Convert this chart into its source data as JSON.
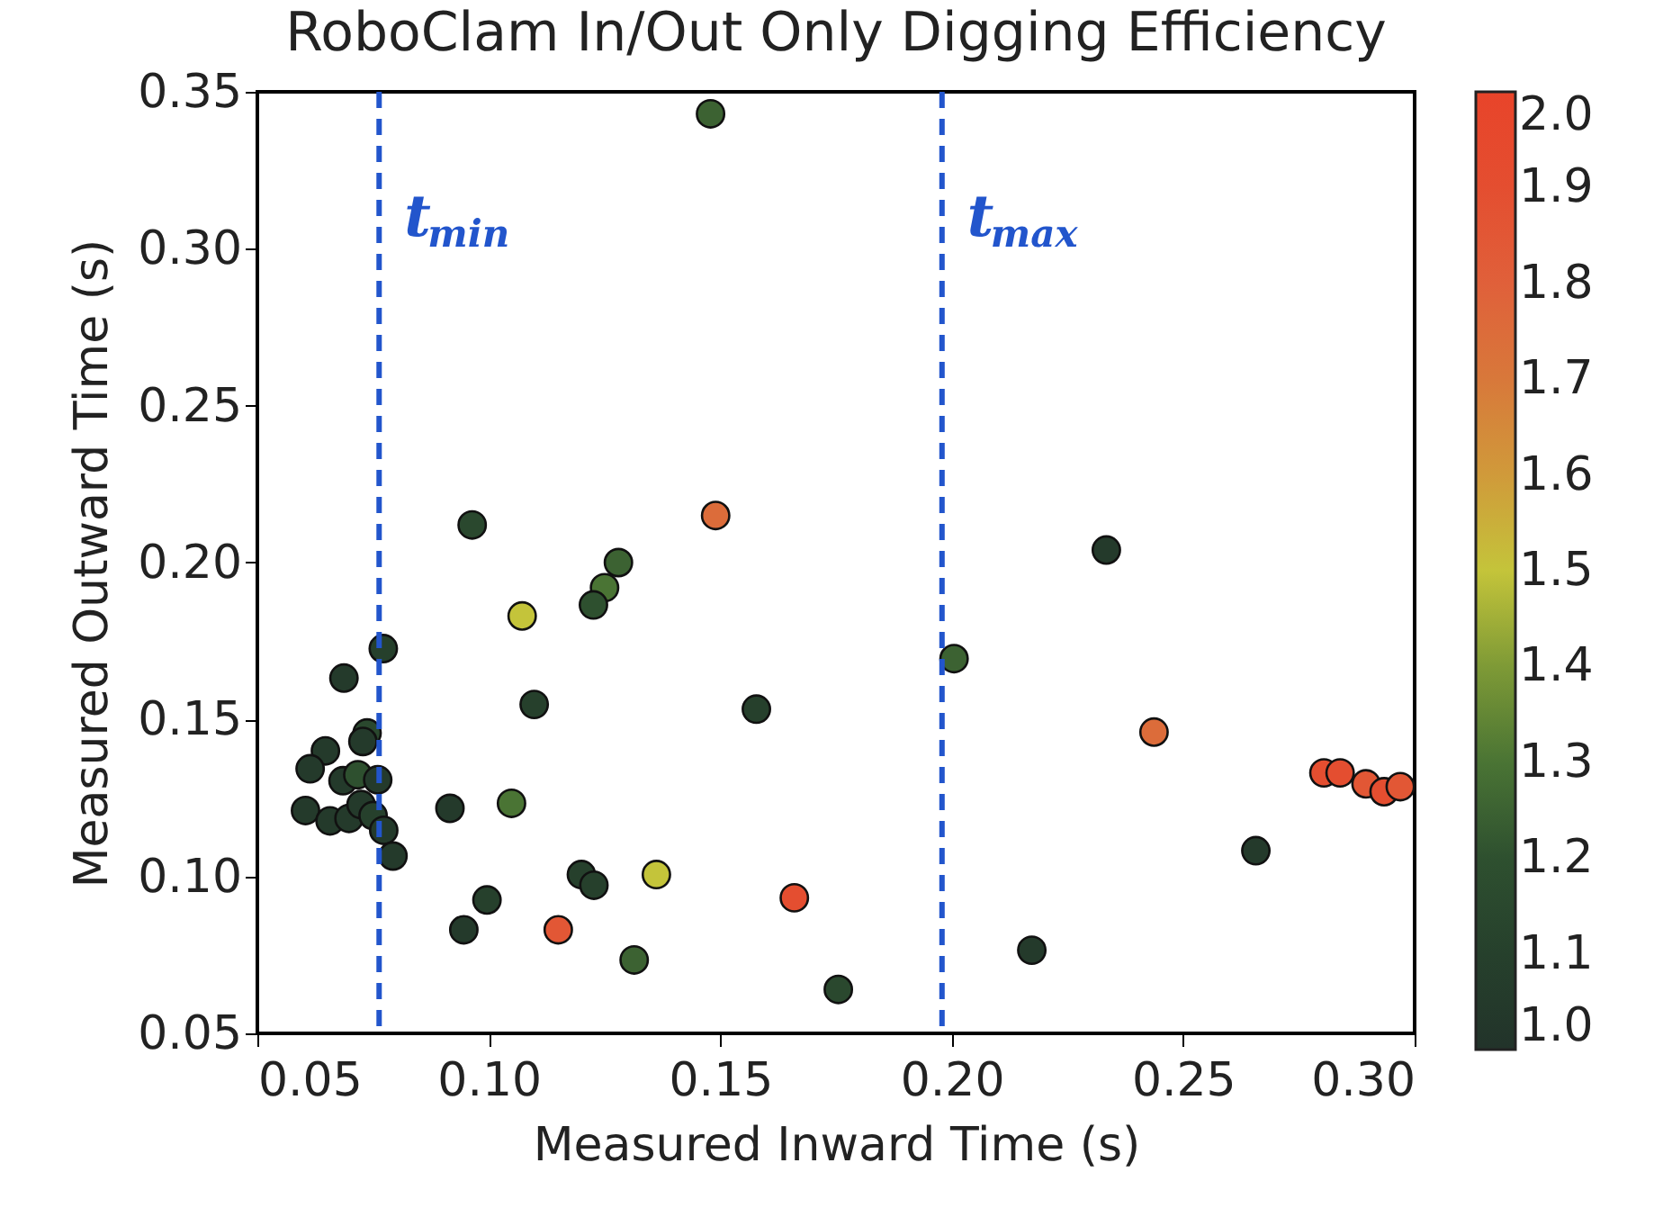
{
  "chart_data": {
    "type": "scatter",
    "title": "RoboClam In/Out Only Digging Efficiency",
    "xlabel": "Measured Inward Time (s)",
    "ylabel": "Measured Outward Time (s)",
    "x": [
      0.1479,
      0.0964,
      0.149,
      0.128,
      0.125,
      0.1226,
      0.1072,
      0.0772,
      0.0687,
      0.1098,
      0.1578,
      0.0737,
      0.0728,
      0.0647,
      0.0614,
      0.0685,
      0.0717,
      0.076,
      0.0604,
      0.0657,
      0.0698,
      0.0724,
      0.075,
      0.0773,
      0.0793,
      0.0916,
      0.1049,
      0.12,
      0.1227,
      0.1362,
      0.0996,
      0.0946,
      0.115,
      0.1314,
      0.166,
      0.1755,
      0.2334,
      0.2005,
      0.2437,
      0.2804,
      0.2839,
      0.2895,
      0.2934,
      0.2969,
      0.2657,
      0.2173
    ],
    "values": [
      0.343,
      0.212,
      0.215,
      0.2,
      0.192,
      0.1865,
      0.183,
      0.1726,
      0.1632,
      0.1548,
      0.1533,
      0.1457,
      0.143,
      0.14,
      0.1343,
      0.1305,
      0.1324,
      0.1308,
      0.121,
      0.1177,
      0.1185,
      0.1229,
      0.1194,
      0.1147,
      0.1065,
      0.1217,
      0.1233,
      0.1006,
      0.0972,
      0.1006,
      0.0925,
      0.083,
      0.083,
      0.0734,
      0.0932,
      0.064,
      0.204,
      0.1694,
      0.146,
      0.133,
      0.133,
      0.1295,
      0.127,
      0.1286,
      0.1082,
      0.0765
    ],
    "cvalues": [
      1.25,
      1.15,
      1.75,
      1.25,
      1.3,
      1.2,
      1.5,
      1.1,
      1.05,
      1.1,
      1.1,
      1.15,
      1.05,
      1.05,
      1.05,
      1.05,
      1.2,
      1.05,
      1.05,
      1.05,
      1.05,
      1.05,
      1.1,
      1.05,
      1.05,
      1.05,
      1.3,
      1.1,
      1.1,
      1.5,
      1.1,
      1.05,
      1.85,
      1.25,
      1.9,
      1.15,
      1.05,
      1.25,
      1.75,
      1.9,
      1.9,
      1.85,
      1.9,
      1.85,
      1.05,
      1.05
    ],
    "xlim": [
      0.05,
      0.3
    ],
    "xticks": [
      0.05,
      {
        "value": 0.1,
        "label": "0.10"
      },
      0.15,
      {
        "value": 0.2,
        "label": "0.20"
      },
      0.25,
      {
        "value": 0.3,
        "label": "0.30"
      }
    ],
    "ylim": [
      0.05,
      0.35
    ],
    "yticks": [
      0.05,
      {
        "value": 0.1,
        "label": "0.10"
      },
      0.15,
      {
        "value": 0.2,
        "label": "0.20"
      },
      0.25,
      {
        "value": 0.3,
        "label": "0.30"
      },
      0.35
    ],
    "clim": [
      1.0,
      2.0
    ],
    "cticks": [
      {
        "value": 1,
        "label": "1.0"
      },
      1.1,
      1.2,
      1.3,
      1.4,
      1.5,
      1.6,
      1.7,
      1.8,
      1.9,
      {
        "value": 2,
        "label": "2.0"
      }
    ],
    "ref_lines": [
      {
        "axis": "x",
        "value": 0.0763,
        "label": "t$_{min}$",
        "color": "#2255cc",
        "line_style": "dashed"
      },
      {
        "axis": "x",
        "value": 0.1979,
        "label": "t$_{max}$",
        "color": "#2255cc",
        "line_style": "dashed"
      }
    ],
    "marker": "circle",
    "grid": false
  }
}
